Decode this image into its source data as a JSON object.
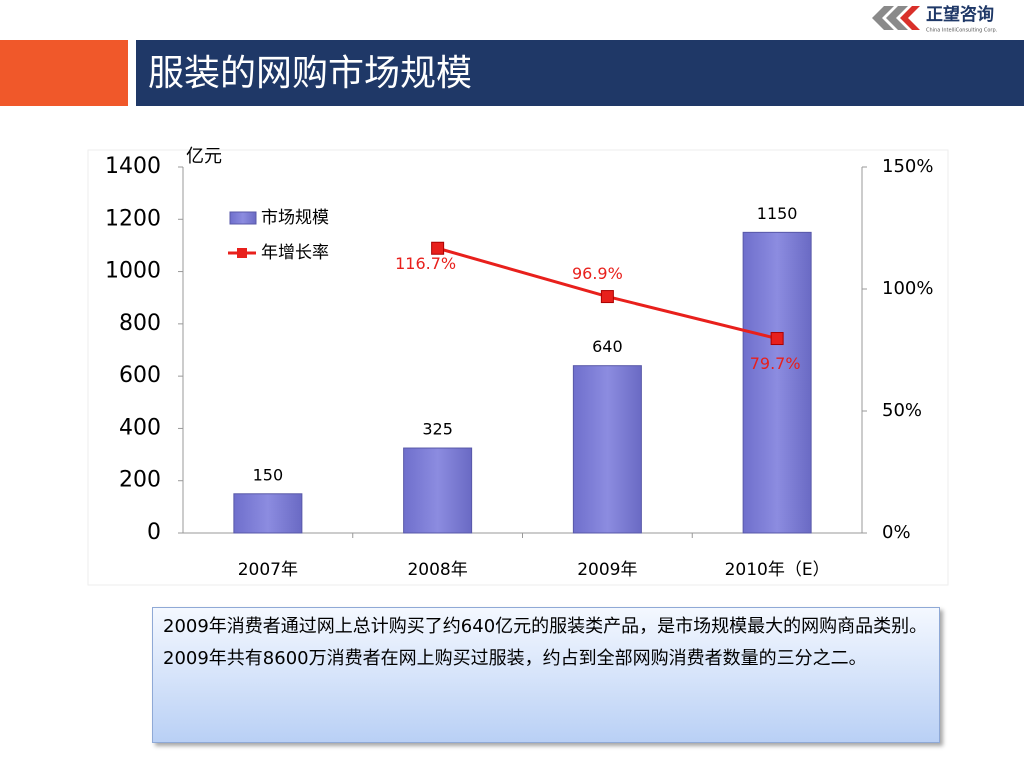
{
  "slide_title": "服装的网购市场规模",
  "logo": "正望咨询",
  "logo_sub": "China IntelliConsulting Corp.",
  "chart_data": {
    "type": "bar",
    "y_label": "亿元",
    "categories": [
      "2007年",
      "2008年",
      "2009年",
      "2010年（E）"
    ],
    "series": [
      {
        "name": "市场规模",
        "type": "bar",
        "color": "#8c8ce0",
        "values": [
          150,
          325,
          640,
          1150
        ]
      },
      {
        "name": "年增长率",
        "type": "line",
        "axis": "y2",
        "color": "#e8201c",
        "values": [
          null,
          116.7,
          96.9,
          79.7
        ],
        "value_labels": [
          null,
          "116.7%",
          "96.9%",
          "79.7%"
        ]
      }
    ],
    "ylim": [
      0,
      1400
    ],
    "yticks": [
      0,
      200,
      400,
      600,
      800,
      1000,
      1200,
      1400
    ],
    "y2lim": [
      0,
      150
    ],
    "y2ticks": [
      {
        "value": 0,
        "label": "0%"
      },
      {
        "value": 50,
        "label": "50%"
      },
      {
        "value": 100,
        "label": "100%"
      },
      {
        "value": 150,
        "label": "150%"
      }
    ],
    "grid": false,
    "legend": "upper left"
  },
  "notes": [
    "2009年消费者通过网上总计购买了约640亿元的服装类产品，是市场规模最大的网购商品类别。",
    "2009年共有8600万消费者在网上购买过服装，约占到全部网购消费者数量的三分之二。"
  ]
}
